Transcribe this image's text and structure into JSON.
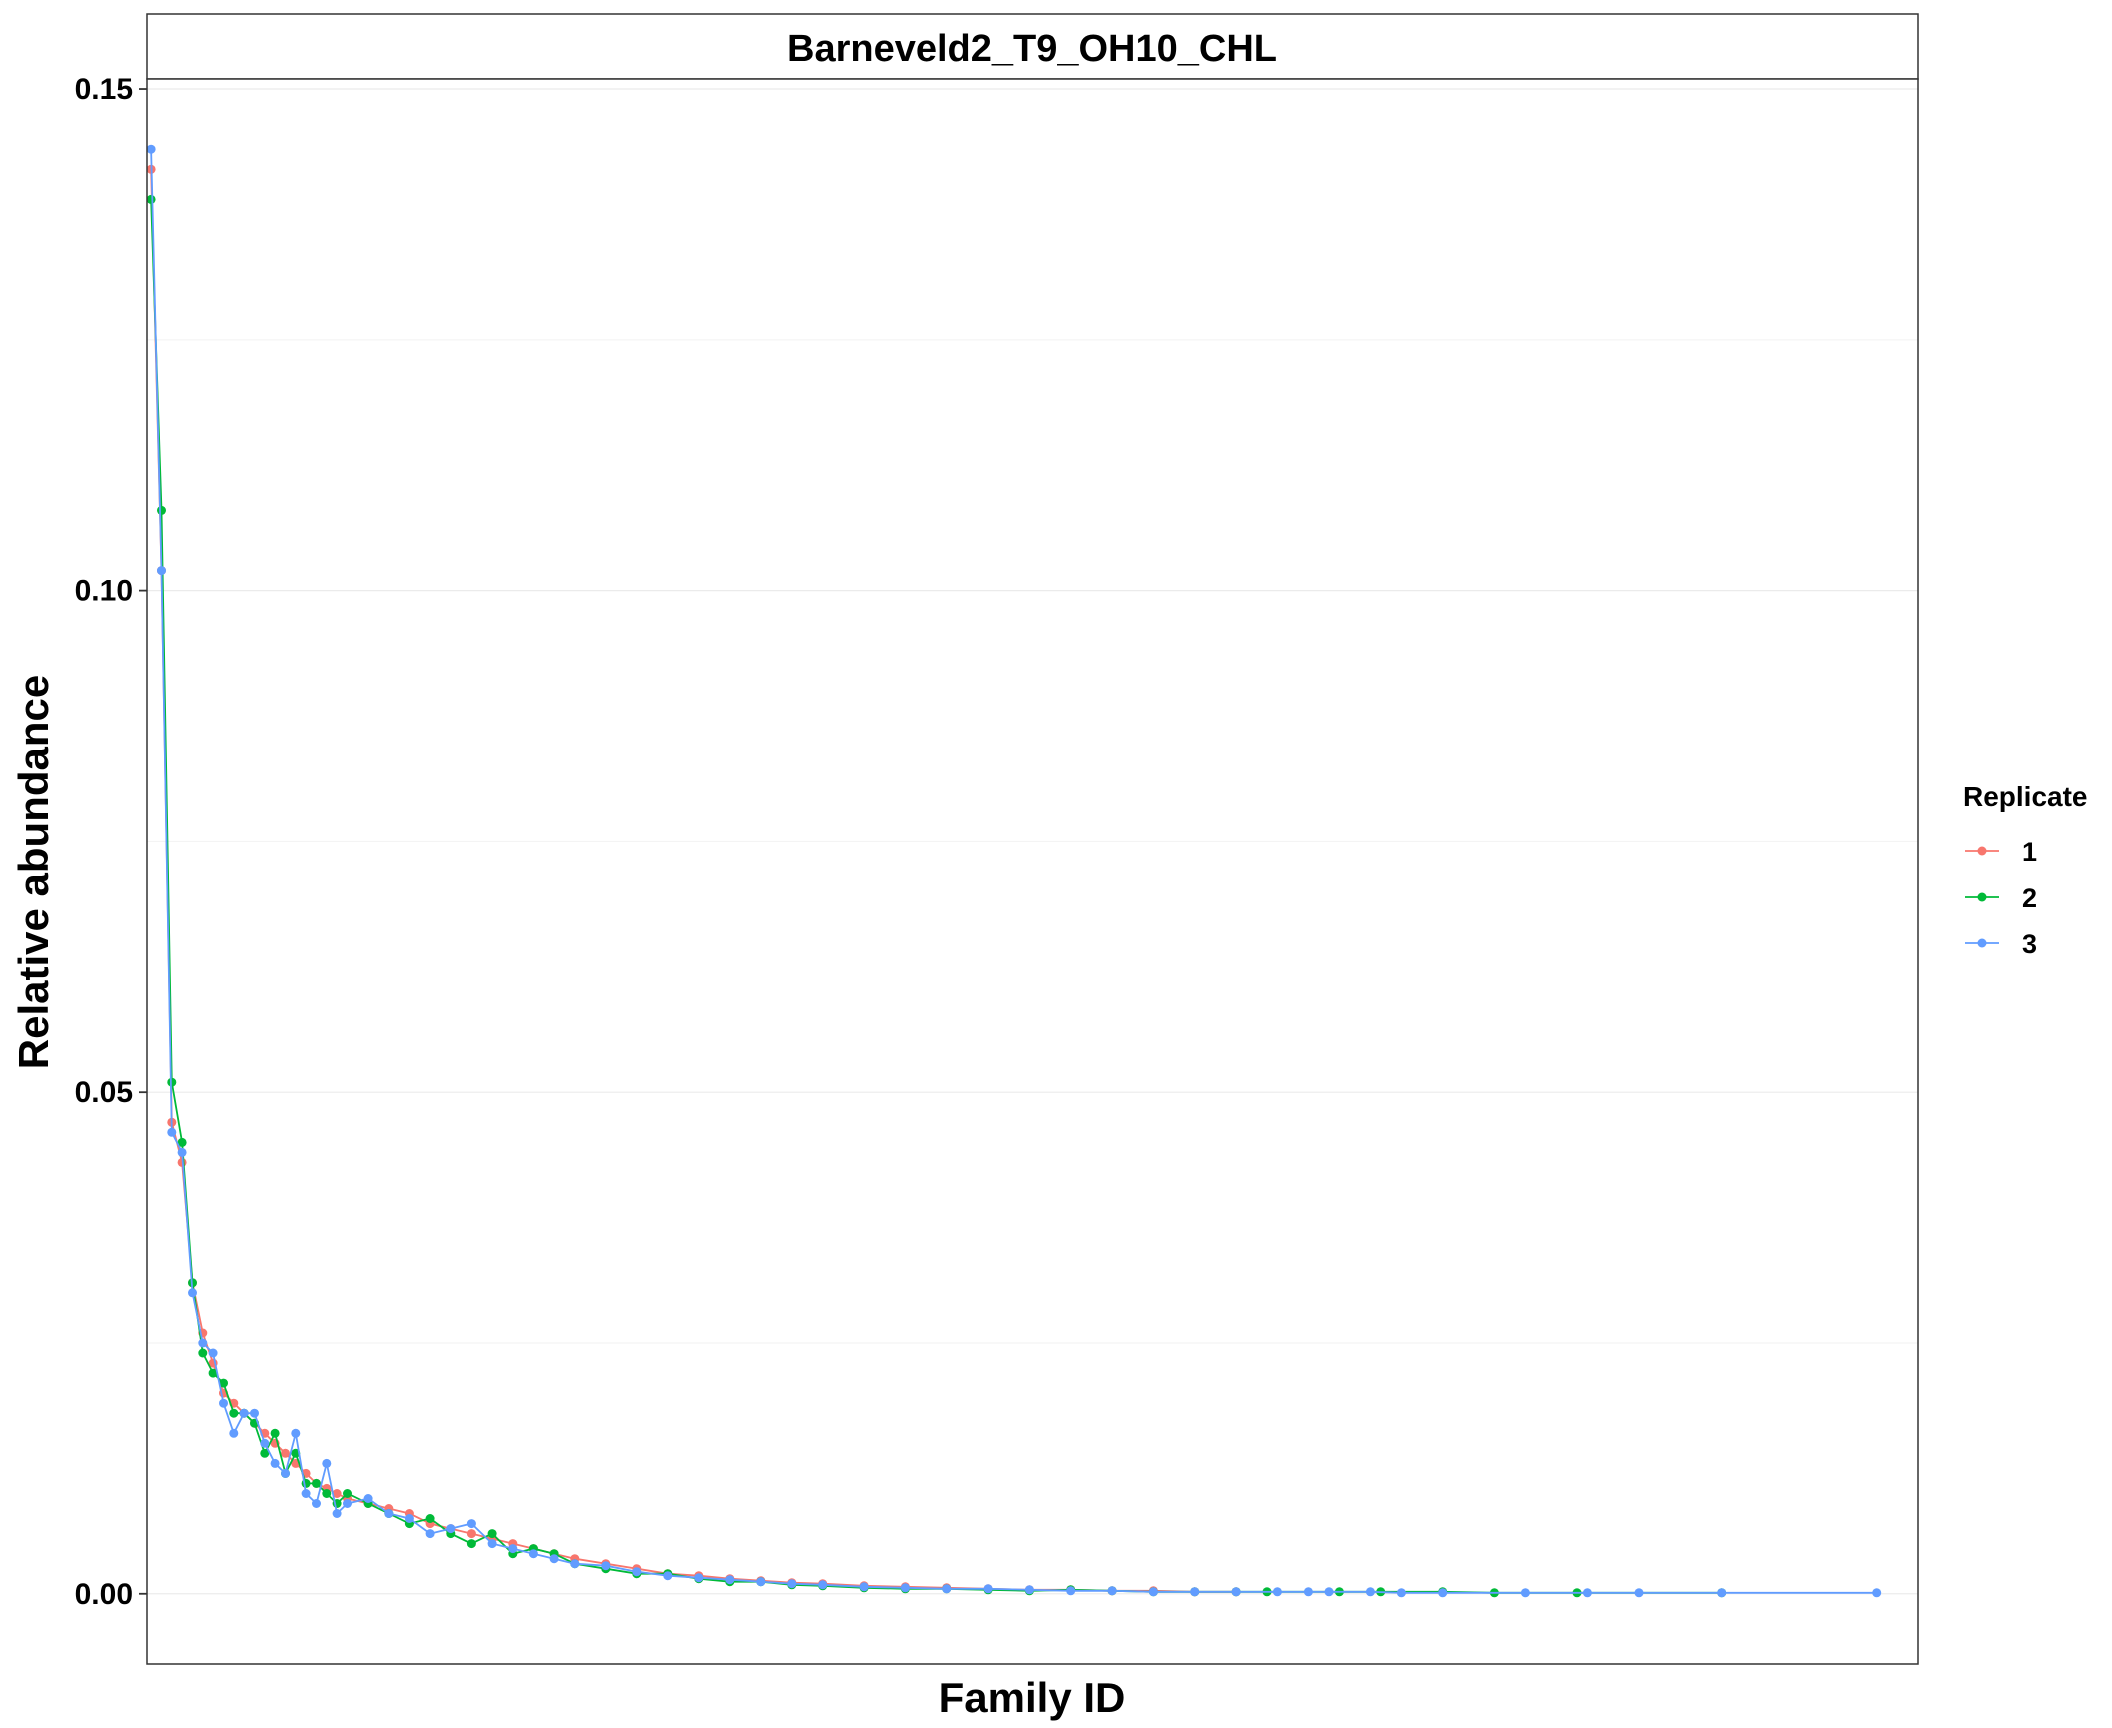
{
  "chart_data": {
    "type": "line",
    "title": "Barneveld2_T9_OH10_CHL",
    "xlabel": "Family ID",
    "ylabel": "Relative abundance",
    "ylim": [
      -0.007,
      0.151
    ],
    "xlim": [
      0.6,
      172
    ],
    "yticks": [
      0.0,
      0.05,
      0.1,
      0.15
    ],
    "ytick_labels": [
      "0.00",
      "0.05",
      "0.10",
      "0.15"
    ],
    "xticks": [],
    "grid": "horizontal major lines, very light",
    "legend": {
      "title": "Replicate",
      "position": "right",
      "entries": [
        "1",
        "2",
        "3"
      ]
    },
    "series": [
      {
        "name": "1",
        "color": "#F8766D",
        "x": [
          1,
          2,
          3,
          4,
          5,
          6,
          7,
          8,
          9,
          10,
          11,
          12,
          13,
          14,
          15,
          16,
          17,
          18,
          19,
          20,
          22,
          24,
          26,
          28,
          30,
          32,
          34,
          36,
          38,
          40,
          42,
          45,
          48,
          51,
          54,
          57,
          60,
          63,
          66,
          70,
          74,
          78,
          82,
          86,
          90,
          94,
          98,
          102,
          106
        ],
        "values": [
          0.142,
          0.102,
          0.047,
          0.043,
          0.031,
          0.026,
          0.023,
          0.02,
          0.019,
          0.018,
          0.017,
          0.016,
          0.015,
          0.014,
          0.013,
          0.012,
          0.011,
          0.0105,
          0.01,
          0.0095,
          0.009,
          0.0085,
          0.008,
          0.007,
          0.0065,
          0.006,
          0.0055,
          0.005,
          0.0045,
          0.004,
          0.0035,
          0.003,
          0.0025,
          0.002,
          0.0018,
          0.0015,
          0.0013,
          0.0011,
          0.001,
          0.0008,
          0.0007,
          0.0006,
          0.0005,
          0.0004,
          0.0004,
          0.0003,
          0.0003,
          0.0002,
          0.0002
        ]
      },
      {
        "name": "2",
        "color": "#00BA38",
        "x": [
          1,
          2,
          3,
          4,
          5,
          6,
          7,
          8,
          9,
          10,
          11,
          12,
          13,
          14,
          15,
          16,
          17,
          18,
          19,
          20,
          22,
          24,
          26,
          28,
          30,
          32,
          34,
          36,
          38,
          40,
          42,
          45,
          48,
          51,
          54,
          57,
          60,
          63,
          66,
          70,
          74,
          78,
          82,
          86,
          90,
          94,
          98,
          102,
          106,
          109,
          116,
          120,
          126,
          131,
          139,
          153
        ],
        "values": [
          0.139,
          0.108,
          0.051,
          0.045,
          0.031,
          0.024,
          0.022,
          0.021,
          0.018,
          0.018,
          0.017,
          0.014,
          0.016,
          0.012,
          0.014,
          0.011,
          0.011,
          0.01,
          0.009,
          0.01,
          0.009,
          0.008,
          0.007,
          0.0075,
          0.006,
          0.005,
          0.006,
          0.004,
          0.0045,
          0.004,
          0.003,
          0.0025,
          0.002,
          0.002,
          0.0015,
          0.0012,
          0.0012,
          0.0009,
          0.0008,
          0.0006,
          0.0005,
          0.0005,
          0.0004,
          0.0003,
          0.0004,
          0.0003,
          0.0002,
          0.0002,
          0.0002,
          0.0002,
          0.0002,
          0.0002,
          0.0002,
          0.0001,
          0.0001,
          0.0001
        ]
      },
      {
        "name": "3",
        "color": "#619CFF",
        "x": [
          1,
          2,
          3,
          4,
          5,
          6,
          7,
          8,
          9,
          10,
          11,
          12,
          13,
          14,
          15,
          16,
          17,
          18,
          19,
          20,
          22,
          24,
          26,
          28,
          30,
          32,
          34,
          36,
          38,
          40,
          42,
          45,
          48,
          51,
          54,
          57,
          60,
          63,
          66,
          70,
          74,
          78,
          82,
          86,
          90,
          94,
          98,
          102,
          106,
          110,
          113,
          115,
          119,
          122,
          126,
          134,
          140,
          145,
          153,
          168
        ],
        "values": [
          0.144,
          0.102,
          0.046,
          0.044,
          0.03,
          0.025,
          0.024,
          0.019,
          0.016,
          0.018,
          0.018,
          0.015,
          0.013,
          0.012,
          0.016,
          0.01,
          0.009,
          0.013,
          0.008,
          0.009,
          0.0095,
          0.008,
          0.0075,
          0.006,
          0.0065,
          0.007,
          0.005,
          0.0045,
          0.004,
          0.0035,
          0.003,
          0.0028,
          0.0022,
          0.0018,
          0.0016,
          0.0014,
          0.0012,
          0.001,
          0.0009,
          0.0007,
          0.0006,
          0.0005,
          0.0005,
          0.0004,
          0.0003,
          0.0003,
          0.0002,
          0.0002,
          0.0002,
          0.0002,
          0.0002,
          0.0002,
          0.0002,
          0.0001,
          0.0001,
          0.0001,
          0.0001,
          0.0001,
          0.0001,
          0.0001
        ]
      }
    ]
  }
}
